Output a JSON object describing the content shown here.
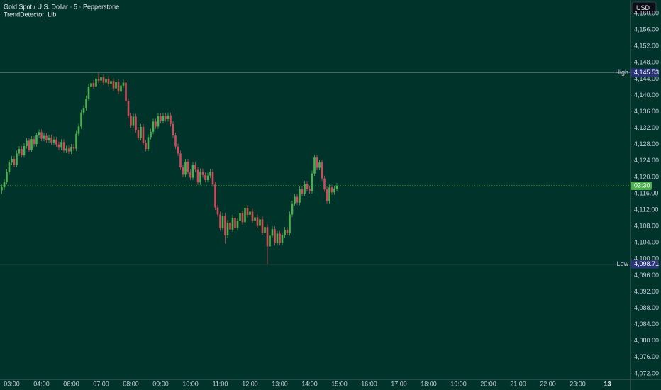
{
  "chart_data": {
    "type": "candlestick",
    "title": "Gold Spot / U.S. Dollar · 5 · Pepperstone",
    "indicator": "TrendDetector_Lib",
    "currency": "USD",
    "up_color": "#4caf50",
    "down_color": "#d1495b",
    "x": [
      "02:40",
      "02:45",
      "02:50",
      "02:55",
      "03:00",
      "03:05",
      "03:10",
      "03:15",
      "03:20",
      "03:25",
      "03:30",
      "03:35",
      "03:40",
      "03:45",
      "03:50",
      "03:55",
      "04:00",
      "04:05",
      "04:10",
      "04:15",
      "04:20",
      "04:25",
      "04:30",
      "04:35",
      "04:40",
      "04:45",
      "04:50",
      "04:55",
      "06:00",
      "06:05",
      "06:10",
      "06:15",
      "06:20",
      "06:25",
      "06:30",
      "06:35",
      "06:40",
      "06:45",
      "06:50",
      "06:55",
      "07:00",
      "07:05",
      "07:10",
      "07:15",
      "07:20",
      "07:25",
      "07:30",
      "07:35",
      "07:40",
      "07:45",
      "07:50",
      "07:55",
      "08:00",
      "08:05",
      "08:10",
      "08:15",
      "08:20",
      "08:25",
      "08:30",
      "08:35",
      "08:40",
      "08:45",
      "08:50",
      "08:55",
      "09:00",
      "09:05",
      "09:10",
      "09:15",
      "09:20",
      "09:25",
      "09:30",
      "09:35",
      "09:40",
      "09:45",
      "09:50",
      "09:55",
      "10:00",
      "10:05",
      "10:10",
      "10:15",
      "10:20",
      "10:25",
      "10:30",
      "10:35",
      "10:40",
      "10:45",
      "10:50",
      "10:55",
      "11:00",
      "11:05",
      "11:10",
      "11:15",
      "11:20",
      "11:25",
      "11:30",
      "11:35",
      "11:40",
      "11:45",
      "11:50",
      "11:55",
      "12:00",
      "12:05",
      "12:10",
      "12:15",
      "12:20",
      "12:25",
      "12:30",
      "12:35",
      "12:40",
      "12:45",
      "12:50",
      "12:55",
      "13:00",
      "13:05",
      "13:10",
      "13:15",
      "13:20",
      "13:25",
      "13:30",
      "13:35",
      "13:40",
      "13:45",
      "13:50",
      "13:55",
      "14:00",
      "14:05",
      "14:10",
      "14:15",
      "14:20",
      "14:25",
      "14:30",
      "14:35",
      "14:40",
      "14:45",
      "14:50",
      "14:55"
    ],
    "open": [
      4116.8,
      4117.5,
      4118.8,
      4121.2,
      4123.6,
      4124.5,
      4123.0,
      4125.8,
      4126.9,
      4125.4,
      4127.6,
      4128.9,
      4126.7,
      4129.3,
      4128.1,
      4130.2,
      4131.0,
      4129.4,
      4130.1,
      4129.0,
      4129.7,
      4128.5,
      4129.2,
      4128.0,
      4127.2,
      4128.6,
      4126.5,
      4127.0,
      4126.3,
      4127.4,
      4127.0,
      4130.6,
      4132.4,
      4135.8,
      4136.9,
      4139.2,
      4142.1,
      4143.0,
      4142.2,
      4144.1,
      4143.6,
      4144.4,
      4143.1,
      4144.0,
      4142.8,
      4143.5,
      4141.7,
      4143.2,
      4140.9,
      4142.4,
      4143.1,
      4138.6,
      4135.0,
      4132.7,
      4134.8,
      4131.5,
      4129.6,
      4132.3,
      4128.4,
      4126.9,
      4129.8,
      4131.1,
      4133.6,
      4132.4,
      4134.9,
      4133.8,
      4135.0,
      4134.2,
      4135.1,
      4133.0,
      4130.2,
      4127.5,
      4125.8,
      4122.4,
      4120.6,
      4123.8,
      4121.2,
      4119.9,
      4123.0,
      4121.8,
      4118.7,
      4121.4,
      4120.5,
      4119.3,
      4120.4,
      4121.3,
      4118.2,
      4112.6,
      4110.9,
      4107.5,
      4110.6,
      4105.8,
      4108.9,
      4107.2,
      4110.1,
      4107.6,
      4109.3,
      4111.2,
      4109.0,
      4112.5,
      4110.8,
      4111.6,
      4109.4,
      4110.2,
      4108.1,
      4109.7,
      4106.4,
      4107.8,
      4103.1,
      4105.7,
      4107.3,
      4103.9,
      4106.2,
      4104.0,
      4105.8,
      4107.1,
      4106.3,
      4110.9,
      4113.6,
      4115.2,
      4113.8,
      4117.1,
      4116.0,
      4118.4,
      4117.2,
      4116.6,
      4120.9,
      4124.8,
      4122.3,
      4123.6,
      4119.7,
      4117.0,
      4114.2,
      4117.5,
      4116.3,
      4117.2
    ],
    "high": [
      4118.2,
      4119.5,
      4121.9,
      4124.3,
      4125.2,
      4125.2,
      4126.5,
      4127.6,
      4127.6,
      4128.3,
      4129.6,
      4129.6,
      4130.0,
      4130.0,
      4130.9,
      4131.7,
      4131.7,
      4130.8,
      4130.8,
      4130.4,
      4130.4,
      4129.9,
      4129.9,
      4128.7,
      4129.3,
      4129.3,
      4127.7,
      4127.7,
      4128.1,
      4128.1,
      4131.3,
      4133.1,
      4136.5,
      4137.6,
      4139.9,
      4142.8,
      4143.7,
      4143.7,
      4144.8,
      4145.53,
      4145.1,
      4145.1,
      4144.7,
      4144.7,
      4144.2,
      4144.2,
      4143.9,
      4143.9,
      4143.1,
      4143.8,
      4143.8,
      4139.3,
      4135.7,
      4135.5,
      4135.5,
      4132.2,
      4133.0,
      4133.0,
      4129.1,
      4130.5,
      4131.8,
      4134.3,
      4134.3,
      4135.6,
      4135.6,
      4135.7,
      4135.7,
      4135.8,
      4135.8,
      4133.7,
      4130.9,
      4128.2,
      4126.5,
      4123.1,
      4124.5,
      4124.5,
      4121.9,
      4123.7,
      4123.7,
      4122.5,
      4122.1,
      4122.1,
      4121.2,
      4121.1,
      4122.0,
      4122.0,
      4118.9,
      4113.3,
      4111.6,
      4111.3,
      4111.3,
      4109.6,
      4109.6,
      4110.8,
      4110.8,
      4110.0,
      4111.9,
      4111.9,
      4113.2,
      4113.2,
      4112.3,
      4112.3,
      4110.9,
      4110.9,
      4110.4,
      4110.4,
      4108.5,
      4108.5,
      4106.4,
      4108.0,
      4108.0,
      4106.9,
      4106.9,
      4106.5,
      4107.8,
      4107.8,
      4111.6,
      4114.3,
      4115.9,
      4115.9,
      4117.8,
      4117.8,
      4119.1,
      4119.1,
      4117.9,
      4121.6,
      4125.5,
      4125.5,
      4124.3,
      4124.3,
      4120.4,
      4117.7,
      4118.2,
      4118.2,
      4117.9,
      4118.6
    ],
    "low": [
      4115.9,
      4116.9,
      4118.2,
      4120.6,
      4123.0,
      4122.4,
      4122.4,
      4125.2,
      4124.8,
      4124.8,
      4127.0,
      4126.1,
      4126.1,
      4127.5,
      4127.5,
      4129.6,
      4128.8,
      4128.8,
      4128.4,
      4128.4,
      4127.9,
      4127.9,
      4127.4,
      4126.6,
      4126.6,
      4125.9,
      4125.9,
      4125.7,
      4125.7,
      4126.4,
      4126.4,
      4130.0,
      4131.8,
      4135.2,
      4136.3,
      4138.6,
      4141.5,
      4141.6,
      4141.6,
      4143.0,
      4143.0,
      4142.5,
      4142.5,
      4142.2,
      4142.2,
      4141.1,
      4141.1,
      4140.3,
      4140.3,
      4141.8,
      4138.0,
      4134.4,
      4132.1,
      4132.1,
      4130.9,
      4129.0,
      4129.0,
      4127.8,
      4126.3,
      4126.3,
      4129.2,
      4130.5,
      4131.8,
      4131.8,
      4133.2,
      4133.2,
      4133.6,
      4133.6,
      4132.4,
      4129.6,
      4126.9,
      4125.2,
      4121.8,
      4120.0,
      4120.0,
      4120.6,
      4119.3,
      4119.3,
      4121.2,
      4118.1,
      4118.1,
      4119.9,
      4118.7,
      4118.7,
      4119.8,
      4117.6,
      4112.0,
      4110.3,
      4106.9,
      4106.9,
      4103.8,
      4105.2,
      4106.6,
      4106.6,
      4107.0,
      4107.0,
      4108.7,
      4108.4,
      4108.4,
      4110.2,
      4110.2,
      4108.8,
      4108.8,
      4107.5,
      4107.5,
      4105.8,
      4105.8,
      4098.71,
      4102.5,
      4105.1,
      4103.3,
      4103.3,
      4103.4,
      4103.4,
      4105.2,
      4105.7,
      4105.7,
      4110.3,
      4113.0,
      4113.2,
      4113.2,
      4115.4,
      4115.4,
      4116.6,
      4116.0,
      4116.0,
      4120.3,
      4121.7,
      4121.7,
      4119.1,
      4116.4,
      4113.6,
      4113.6,
      4115.7,
      4115.7,
      4116.6
    ],
    "close": [
      4117.5,
      4118.8,
      4121.2,
      4123.6,
      4124.5,
      4123.0,
      4125.8,
      4126.9,
      4125.4,
      4127.6,
      4128.9,
      4126.7,
      4129.3,
      4128.1,
      4130.2,
      4131.0,
      4129.4,
      4130.1,
      4129.0,
      4129.7,
      4128.5,
      4129.2,
      4128.0,
      4127.2,
      4128.6,
      4126.5,
      4127.0,
      4126.3,
      4127.4,
      4127.0,
      4130.6,
      4132.4,
      4135.8,
      4136.9,
      4139.2,
      4142.1,
      4143.0,
      4142.2,
      4144.1,
      4143.6,
      4144.4,
      4143.1,
      4144.0,
      4142.8,
      4143.5,
      4141.7,
      4143.2,
      4140.9,
      4142.4,
      4143.1,
      4138.6,
      4135.0,
      4132.7,
      4134.8,
      4131.5,
      4129.6,
      4132.3,
      4128.4,
      4126.9,
      4129.8,
      4131.1,
      4133.6,
      4132.4,
      4134.9,
      4133.8,
      4135.0,
      4134.2,
      4135.1,
      4133.0,
      4130.2,
      4127.5,
      4125.8,
      4122.4,
      4120.6,
      4123.8,
      4121.2,
      4119.9,
      4123.0,
      4121.8,
      4118.7,
      4121.4,
      4120.5,
      4119.3,
      4120.4,
      4121.3,
      4118.2,
      4112.6,
      4110.9,
      4107.5,
      4110.6,
      4105.8,
      4108.9,
      4107.2,
      4110.1,
      4107.6,
      4109.3,
      4111.2,
      4109.0,
      4112.5,
      4110.8,
      4111.6,
      4109.4,
      4110.2,
      4108.1,
      4109.7,
      4106.4,
      4107.8,
      4103.1,
      4105.7,
      4107.3,
      4103.9,
      4106.2,
      4104.0,
      4105.8,
      4107.1,
      4106.3,
      4110.9,
      4113.6,
      4115.2,
      4113.8,
      4117.1,
      4116.0,
      4118.4,
      4117.2,
      4116.6,
      4120.9,
      4124.8,
      4122.3,
      4123.6,
      4119.7,
      4117.0,
      4114.2,
      4117.5,
      4116.3,
      4117.2,
      4117.9
    ],
    "ylim": [
      4070.6,
      4163.3
    ],
    "yticks": [
      {
        "value": 4072,
        "label": "4,072.00"
      },
      {
        "value": 4076,
        "label": "4,076.00"
      },
      {
        "value": 4080,
        "label": "4,080.00"
      },
      {
        "value": 4084,
        "label": "4,084.00"
      },
      {
        "value": 4088,
        "label": "4,088.00"
      },
      {
        "value": 4092,
        "label": "4,092.00"
      },
      {
        "value": 4096,
        "label": "4,096.00"
      },
      {
        "value": 4100,
        "label": "4,100.00"
      },
      {
        "value": 4104,
        "label": "4,104.00"
      },
      {
        "value": 4108,
        "label": "4,108.00"
      },
      {
        "value": 4112,
        "label": "4,112.00"
      },
      {
        "value": 4116,
        "label": "4,116.00"
      },
      {
        "value": 4120,
        "label": "4,120.00"
      },
      {
        "value": 4124,
        "label": "4,124.00"
      },
      {
        "value": 4128,
        "label": "4,128.00"
      },
      {
        "value": 4132,
        "label": "4,132.00"
      },
      {
        "value": 4136,
        "label": "4,136.00"
      },
      {
        "value": 4140,
        "label": "4,140.00"
      },
      {
        "value": 4144,
        "label": "4,144.00"
      },
      {
        "value": 4148,
        "label": "4,148.00"
      },
      {
        "value": 4152,
        "label": "4,152.00"
      },
      {
        "value": 4156,
        "label": "4,156.00"
      },
      {
        "value": 4160,
        "label": "4,160.00"
      }
    ],
    "xticks": [
      "03:00",
      "04:00",
      "06:00",
      "07:00",
      "08:00",
      "09:00",
      "10:00",
      "11:00",
      "12:00",
      "13:00",
      "14:00",
      "15:00",
      "16:00",
      "17:00",
      "18:00",
      "19:00",
      "20:00",
      "21:00",
      "22:00",
      "23:00",
      "13"
    ],
    "high_marker": {
      "label": "High",
      "value": 4145.53,
      "value_label": "4,145.53"
    },
    "low_marker": {
      "label": "Low",
      "value": 4098.71,
      "value_label": "4,098.71"
    },
    "countdown": "03:30"
  }
}
